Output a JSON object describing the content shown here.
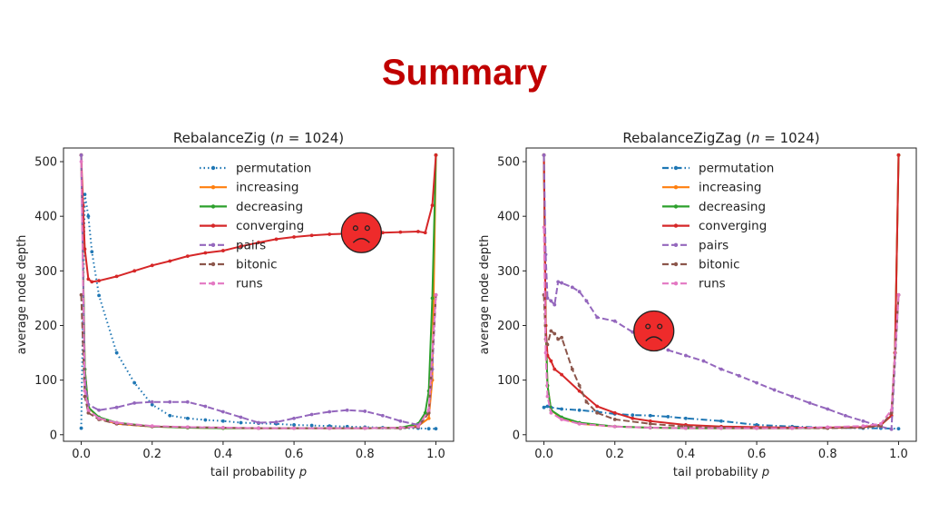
{
  "slide": {
    "title": "Summary"
  },
  "colors": {
    "permutation": "#1f77b4",
    "increasing": "#ff7f0e",
    "decreasing": "#2ca02c",
    "converging": "#d62728",
    "pairs": "#9467bd",
    "bitonic": "#8c564b",
    "runs": "#e377c2",
    "sad_face": "#ee2b2b",
    "title_red": "#c00000"
  },
  "icons": {
    "sad_face": "sad-face-icon"
  },
  "chart_data": [
    {
      "type": "line",
      "title_prefix": "RebalanceZig (",
      "title_var": "n",
      "title_suffix": " = 1024)",
      "xlabel_prefix": "tail probability ",
      "xlabel_var": "p",
      "ylabel": "average node depth",
      "xlim": [
        -0.05,
        1.05
      ],
      "ylim": [
        -12,
        525
      ],
      "xticks": [
        0.0,
        0.2,
        0.4,
        0.6,
        0.8,
        1.0
      ],
      "xtick_labels": [
        "0.0",
        "0.2",
        "0.4",
        "0.6",
        "0.8",
        "1.0"
      ],
      "yticks": [
        0,
        100,
        200,
        300,
        400,
        500
      ],
      "ytick_labels": [
        "0",
        "100",
        "200",
        "300",
        "400",
        "500"
      ],
      "legend_position": "top-center",
      "sad_face_at": [
        0.79,
        370
      ],
      "series": [
        {
          "name": "permutation",
          "style": "dotted",
          "x": [
            0.0,
            0.01,
            0.02,
            0.03,
            0.05,
            0.1,
            0.15,
            0.2,
            0.25,
            0.3,
            0.35,
            0.4,
            0.45,
            0.5,
            0.55,
            0.6,
            0.65,
            0.7,
            0.75,
            0.8,
            0.85,
            0.9,
            0.95,
            0.98,
            1.0
          ],
          "y": [
            12,
            440,
            400,
            335,
            255,
            150,
            95,
            55,
            35,
            30,
            27,
            25,
            22,
            21,
            20,
            18,
            17,
            16,
            15,
            14,
            13,
            12,
            12,
            11,
            11
          ]
        },
        {
          "name": "increasing",
          "style": "solid",
          "x": [
            0.0,
            0.01,
            0.02,
            0.05,
            0.1,
            0.2,
            0.3,
            0.4,
            0.5,
            0.6,
            0.7,
            0.8,
            0.9,
            0.95,
            0.98,
            0.99,
            1.0
          ],
          "y": [
            512,
            120,
            50,
            30,
            20,
            15,
            13,
            12,
            12,
            12,
            12,
            12,
            13,
            16,
            30,
            100,
            512
          ]
        },
        {
          "name": "decreasing",
          "style": "solid",
          "x": [
            0.0,
            0.01,
            0.02,
            0.05,
            0.1,
            0.2,
            0.3,
            0.4,
            0.5,
            0.6,
            0.7,
            0.8,
            0.9,
            0.95,
            0.97,
            0.98,
            0.99,
            1.0
          ],
          "y": [
            512,
            120,
            50,
            32,
            22,
            15,
            13,
            12,
            12,
            12,
            12,
            12,
            13,
            20,
            40,
            80,
            250,
            512
          ]
        },
        {
          "name": "converging",
          "style": "solid",
          "x": [
            0.0,
            0.005,
            0.01,
            0.02,
            0.03,
            0.05,
            0.1,
            0.15,
            0.2,
            0.25,
            0.3,
            0.35,
            0.4,
            0.45,
            0.5,
            0.55,
            0.6,
            0.65,
            0.7,
            0.75,
            0.8,
            0.85,
            0.9,
            0.95,
            0.97,
            0.99,
            1.0
          ],
          "y": [
            512,
            420,
            340,
            285,
            280,
            282,
            290,
            300,
            310,
            318,
            327,
            333,
            337,
            345,
            352,
            358,
            362,
            365,
            367,
            368,
            369,
            370,
            371,
            372,
            370,
            420,
            512
          ]
        },
        {
          "name": "pairs",
          "style": "dashed",
          "x": [
            0.0,
            0.01,
            0.02,
            0.05,
            0.1,
            0.15,
            0.2,
            0.25,
            0.3,
            0.35,
            0.4,
            0.45,
            0.5,
            0.55,
            0.6,
            0.65,
            0.7,
            0.75,
            0.8,
            0.85,
            0.9,
            0.95,
            0.98,
            0.99,
            1.0
          ],
          "y": [
            512,
            100,
            55,
            45,
            50,
            58,
            60,
            60,
            60,
            52,
            42,
            32,
            22,
            23,
            30,
            37,
            42,
            45,
            43,
            35,
            25,
            18,
            40,
            120,
            256
          ]
        },
        {
          "name": "bitonic",
          "style": "dashed",
          "x": [
            0.0,
            0.01,
            0.02,
            0.05,
            0.1,
            0.2,
            0.3,
            0.4,
            0.5,
            0.6,
            0.7,
            0.8,
            0.9,
            0.95,
            0.98,
            1.0
          ],
          "y": [
            256,
            70,
            40,
            28,
            20,
            15,
            14,
            13,
            12,
            12,
            12,
            12,
            12,
            14,
            40,
            256
          ]
        },
        {
          "name": "runs",
          "style": "dashed",
          "x": [
            0.0,
            0.01,
            0.02,
            0.05,
            0.1,
            0.2,
            0.3,
            0.4,
            0.5,
            0.6,
            0.7,
            0.8,
            0.9,
            0.95,
            0.98,
            1.0
          ],
          "y": [
            500,
            80,
            45,
            30,
            22,
            16,
            14,
            13,
            12,
            12,
            12,
            12,
            13,
            15,
            45,
            256
          ]
        }
      ]
    },
    {
      "type": "line",
      "title_prefix": "RebalanceZigZag (",
      "title_var": "n",
      "title_suffix": " = 1024)",
      "xlabel_prefix": "tail probability ",
      "xlabel_var": "p",
      "ylabel": "average node depth",
      "xlim": [
        -0.05,
        1.05
      ],
      "ylim": [
        -12,
        525
      ],
      "xticks": [
        0.0,
        0.2,
        0.4,
        0.6,
        0.8,
        1.0
      ],
      "xtick_labels": [
        "0.0",
        "0.2",
        "0.4",
        "0.6",
        "0.8",
        "1.0"
      ],
      "yticks": [
        0,
        100,
        200,
        300,
        400,
        500
      ],
      "ytick_labels": [
        "0",
        "100",
        "200",
        "300",
        "400",
        "500"
      ],
      "legend_position": "top-center",
      "sad_face_at": [
        0.31,
        190
      ],
      "series": [
        {
          "name": "permutation",
          "style": "dashdot",
          "x": [
            0.0,
            0.01,
            0.02,
            0.05,
            0.1,
            0.15,
            0.2,
            0.25,
            0.3,
            0.35,
            0.4,
            0.5,
            0.6,
            0.7,
            0.8,
            0.9,
            0.95,
            1.0
          ],
          "y": [
            50,
            52,
            50,
            47,
            45,
            42,
            38,
            36,
            35,
            33,
            30,
            25,
            18,
            15,
            13,
            12,
            12,
            11
          ]
        },
        {
          "name": "increasing",
          "style": "solid",
          "x": [
            0.0,
            0.005,
            0.01,
            0.02,
            0.05,
            0.1,
            0.2,
            0.3,
            0.4,
            0.5,
            0.6,
            0.7,
            0.8,
            0.9,
            0.95,
            0.98,
            0.99,
            1.0
          ],
          "y": [
            512,
            200,
            90,
            45,
            30,
            20,
            15,
            13,
            12,
            12,
            12,
            12,
            13,
            14,
            18,
            35,
            150,
            512
          ]
        },
        {
          "name": "decreasing",
          "style": "solid",
          "x": [
            0.0,
            0.005,
            0.01,
            0.02,
            0.05,
            0.1,
            0.2,
            0.3,
            0.4,
            0.5,
            0.6,
            0.7,
            0.8,
            0.9,
            0.95,
            0.98,
            0.99,
            1.0
          ],
          "y": [
            512,
            200,
            90,
            45,
            32,
            22,
            15,
            13,
            12,
            12,
            12,
            12,
            13,
            14,
            18,
            35,
            150,
            512
          ]
        },
        {
          "name": "converging",
          "style": "solid",
          "x": [
            0.0,
            0.005,
            0.01,
            0.02,
            0.03,
            0.05,
            0.1,
            0.15,
            0.2,
            0.25,
            0.3,
            0.4,
            0.5,
            0.6,
            0.7,
            0.8,
            0.9,
            0.95,
            0.98,
            0.99,
            1.0
          ],
          "y": [
            512,
            200,
            145,
            135,
            120,
            110,
            80,
            52,
            40,
            30,
            25,
            18,
            15,
            14,
            13,
            13,
            14,
            18,
            35,
            150,
            512
          ]
        },
        {
          "name": "pairs",
          "style": "dashed",
          "x": [
            0.0,
            0.005,
            0.01,
            0.02,
            0.03,
            0.04,
            0.05,
            0.08,
            0.1,
            0.12,
            0.15,
            0.2,
            0.25,
            0.3,
            0.35,
            0.4,
            0.45,
            0.5,
            0.55,
            0.6,
            0.65,
            0.7,
            0.75,
            0.8,
            0.85,
            0.9,
            0.95,
            0.98,
            1.0
          ],
          "y": [
            512,
            330,
            250,
            245,
            238,
            280,
            278,
            270,
            262,
            245,
            215,
            208,
            188,
            170,
            155,
            145,
            135,
            120,
            108,
            95,
            82,
            70,
            58,
            47,
            35,
            25,
            15,
            10,
            256
          ]
        },
        {
          "name": "bitonic",
          "style": "dashed",
          "x": [
            0.0,
            0.005,
            0.01,
            0.02,
            0.03,
            0.04,
            0.05,
            0.08,
            0.1,
            0.12,
            0.15,
            0.2,
            0.3,
            0.4,
            0.5,
            0.6,
            0.7,
            0.8,
            0.9,
            0.95,
            0.98,
            1.0
          ],
          "y": [
            256,
            175,
            165,
            190,
            185,
            175,
            178,
            120,
            90,
            60,
            40,
            28,
            20,
            15,
            13,
            12,
            12,
            12,
            13,
            16,
            40,
            256
          ]
        },
        {
          "name": "runs",
          "style": "dashed",
          "x": [
            0.0,
            0.005,
            0.01,
            0.02,
            0.05,
            0.1,
            0.2,
            0.3,
            0.4,
            0.5,
            0.6,
            0.7,
            0.8,
            0.9,
            0.95,
            0.98,
            1.0
          ],
          "y": [
            380,
            150,
            70,
            40,
            28,
            20,
            15,
            13,
            12,
            12,
            12,
            12,
            14,
            16,
            20,
            45,
            256
          ]
        }
      ]
    }
  ]
}
